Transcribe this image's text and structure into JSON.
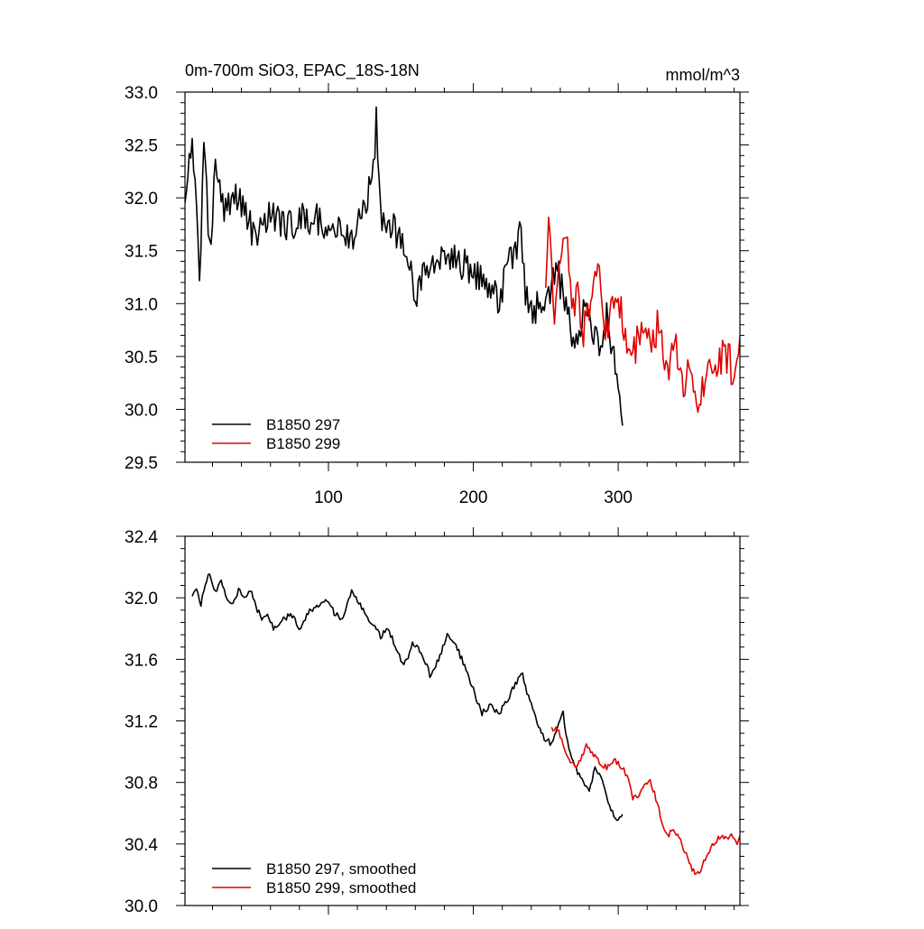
{
  "chart_data": [
    {
      "type": "line",
      "title": "0m-700m SiO3, EPAC_18S-18N",
      "units_label": "mmol/m^3",
      "xlabel": "",
      "ylabel": "",
      "xlim": [
        1,
        384
      ],
      "ylim": [
        29.5,
        33.0
      ],
      "x_ticks": [
        100,
        200,
        300
      ],
      "x_tick_labels": [
        "100",
        "200",
        "300"
      ],
      "y_ticks": [
        29.5,
        30.0,
        30.5,
        31.0,
        31.5,
        32.0,
        32.5,
        33.0
      ],
      "y_tick_labels": [
        "29.5",
        "30.0",
        "30.5",
        "31.0",
        "31.5",
        "32.0",
        "32.5",
        "33.0"
      ],
      "grid": false,
      "legend_position": "bottom-left",
      "series": [
        {
          "name": "B1850 297",
          "color": "#000000",
          "x_start": 1,
          "x_end": 303,
          "anchors": [
            [
              1,
              32.0
            ],
            [
              3,
              32.3
            ],
            [
              6,
              32.5
            ],
            [
              9,
              31.9
            ],
            [
              11,
              31.2
            ],
            [
              14,
              32.5
            ],
            [
              18,
              31.5
            ],
            [
              22,
              32.3
            ],
            [
              28,
              31.8
            ],
            [
              35,
              32.1
            ],
            [
              42,
              31.9
            ],
            [
              50,
              31.6
            ],
            [
              60,
              31.9
            ],
            [
              70,
              31.7
            ],
            [
              80,
              31.8
            ],
            [
              90,
              31.8
            ],
            [
              100,
              31.75
            ],
            [
              108,
              31.7
            ],
            [
              116,
              31.6
            ],
            [
              124,
              31.9
            ],
            [
              131,
              32.2
            ],
            [
              133,
              32.8
            ],
            [
              136,
              31.8
            ],
            [
              145,
              31.7
            ],
            [
              155,
              31.5
            ],
            [
              160,
              31.1
            ],
            [
              170,
              31.4
            ],
            [
              180,
              31.5
            ],
            [
              190,
              31.4
            ],
            [
              200,
              31.3
            ],
            [
              210,
              31.2
            ],
            [
              217,
              31.0
            ],
            [
              224,
              31.4
            ],
            [
              230,
              31.5
            ],
            [
              232,
              31.9
            ],
            [
              236,
              31.1
            ],
            [
              240,
              30.9
            ],
            [
              246,
              31.0
            ],
            [
              252,
              31.1
            ],
            [
              258,
              31.3
            ],
            [
              264,
              31.0
            ],
            [
              270,
              30.5
            ],
            [
              276,
              31.0
            ],
            [
              282,
              30.8
            ],
            [
              288,
              30.6
            ],
            [
              292,
              30.9
            ],
            [
              296,
              30.5
            ],
            [
              300,
              30.3
            ],
            [
              303,
              30.0
            ]
          ],
          "noise": 0.16,
          "seed": 297
        },
        {
          "name": "B1850 299",
          "color": "#e00000",
          "x_start": 250,
          "x_end": 384,
          "anchors": [
            [
              250,
              31.2
            ],
            [
              252,
              31.8
            ],
            [
              256,
              30.9
            ],
            [
              260,
              31.4
            ],
            [
              264,
              31.7
            ],
            [
              268,
              30.9
            ],
            [
              272,
              31.1
            ],
            [
              276,
              30.7
            ],
            [
              280,
              31.0
            ],
            [
              286,
              31.3
            ],
            [
              292,
              30.7
            ],
            [
              298,
              31.1
            ],
            [
              304,
              30.8
            ],
            [
              310,
              30.5
            ],
            [
              316,
              30.8
            ],
            [
              322,
              30.6
            ],
            [
              328,
              30.8
            ],
            [
              334,
              30.4
            ],
            [
              340,
              30.6
            ],
            [
              346,
              30.2
            ],
            [
              350,
              30.5
            ],
            [
              354,
              29.9
            ],
            [
              358,
              30.2
            ],
            [
              364,
              30.4
            ],
            [
              370,
              30.5
            ],
            [
              376,
              30.5
            ],
            [
              380,
              30.3
            ],
            [
              384,
              30.6
            ]
          ],
          "noise": 0.17,
          "seed": 299
        }
      ]
    },
    {
      "type": "line",
      "title": "",
      "xlabel": "",
      "ylabel": "",
      "xlim": [
        1,
        384
      ],
      "ylim": [
        30.0,
        32.4
      ],
      "x_ticks": [
        100,
        200,
        300
      ],
      "x_tick_labels": [
        "",
        "",
        ""
      ],
      "y_ticks": [
        30.0,
        30.4,
        30.8,
        31.2,
        31.6,
        32.0,
        32.4
      ],
      "y_tick_labels": [
        "30.0",
        "30.4",
        "30.8",
        "31.2",
        "31.6",
        "32.0",
        "32.4"
      ],
      "grid": false,
      "legend_position": "bottom-left",
      "series": [
        {
          "name": "B1850 297, smoothed",
          "color": "#000000",
          "x_start": 6,
          "x_end": 303,
          "anchors": [
            [
              6,
              32.0
            ],
            [
              9,
              32.05
            ],
            [
              12,
              31.95
            ],
            [
              15,
              32.1
            ],
            [
              18,
              32.15
            ],
            [
              22,
              32.05
            ],
            [
              26,
              32.1
            ],
            [
              30,
              32.0
            ],
            [
              34,
              31.95
            ],
            [
              38,
              32.05
            ],
            [
              42,
              32.0
            ],
            [
              46,
              32.05
            ],
            [
              50,
              31.95
            ],
            [
              54,
              31.85
            ],
            [
              58,
              31.9
            ],
            [
              62,
              31.8
            ],
            [
              68,
              31.85
            ],
            [
              74,
              31.9
            ],
            [
              80,
              31.8
            ],
            [
              86,
              31.9
            ],
            [
              92,
              31.95
            ],
            [
              98,
              32.0
            ],
            [
              104,
              31.9
            ],
            [
              110,
              31.85
            ],
            [
              116,
              32.05
            ],
            [
              122,
              31.95
            ],
            [
              128,
              31.85
            ],
            [
              132,
              31.8
            ],
            [
              136,
              31.75
            ],
            [
              140,
              31.8
            ],
            [
              146,
              31.7
            ],
            [
              152,
              31.55
            ],
            [
              158,
              31.7
            ],
            [
              164,
              31.65
            ],
            [
              170,
              31.5
            ],
            [
              176,
              31.6
            ],
            [
              182,
              31.75
            ],
            [
              188,
              31.7
            ],
            [
              194,
              31.55
            ],
            [
              200,
              31.4
            ],
            [
              206,
              31.25
            ],
            [
              212,
              31.3
            ],
            [
              218,
              31.25
            ],
            [
              224,
              31.35
            ],
            [
              230,
              31.45
            ],
            [
              234,
              31.5
            ],
            [
              238,
              31.35
            ],
            [
              244,
              31.2
            ],
            [
              248,
              31.1
            ],
            [
              254,
              31.05
            ],
            [
              258,
              31.15
            ],
            [
              262,
              31.25
            ],
            [
              266,
              31.0
            ],
            [
              270,
              30.9
            ],
            [
              276,
              30.8
            ],
            [
              280,
              30.75
            ],
            [
              284,
              30.9
            ],
            [
              288,
              30.85
            ],
            [
              292,
              30.7
            ],
            [
              296,
              30.6
            ],
            [
              300,
              30.55
            ],
            [
              303,
              30.6
            ]
          ],
          "noise": 0.02,
          "seed": 1297
        },
        {
          "name": "B1850 299, smoothed",
          "color": "#e00000",
          "x_start": 254,
          "x_end": 384,
          "anchors": [
            [
              254,
              31.15
            ],
            [
              258,
              31.15
            ],
            [
              262,
              31.05
            ],
            [
              266,
              30.95
            ],
            [
              270,
              30.9
            ],
            [
              274,
              30.95
            ],
            [
              278,
              31.05
            ],
            [
              282,
              31.0
            ],
            [
              286,
              30.95
            ],
            [
              290,
              30.9
            ],
            [
              294,
              30.9
            ],
            [
              298,
              30.95
            ],
            [
              302,
              30.9
            ],
            [
              306,
              30.85
            ],
            [
              310,
              30.7
            ],
            [
              314,
              30.7
            ],
            [
              318,
              30.8
            ],
            [
              322,
              30.8
            ],
            [
              326,
              30.7
            ],
            [
              330,
              30.55
            ],
            [
              334,
              30.45
            ],
            [
              338,
              30.5
            ],
            [
              342,
              30.45
            ],
            [
              346,
              30.35
            ],
            [
              350,
              30.25
            ],
            [
              354,
              30.2
            ],
            [
              358,
              30.25
            ],
            [
              362,
              30.35
            ],
            [
              366,
              30.4
            ],
            [
              370,
              30.45
            ],
            [
              374,
              30.45
            ],
            [
              378,
              30.45
            ],
            [
              382,
              30.4
            ],
            [
              384,
              30.45
            ]
          ],
          "noise": 0.02,
          "seed": 1299
        }
      ]
    }
  ]
}
